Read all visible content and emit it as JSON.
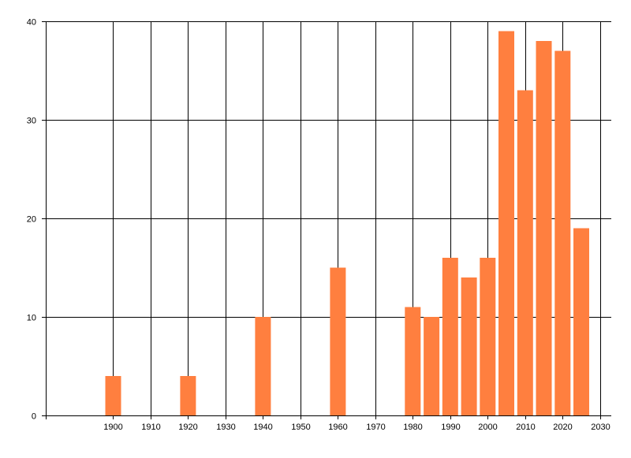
{
  "chart_data": {
    "type": "bar",
    "x": [
      1900,
      1920,
      1940,
      1960,
      1980,
      1985,
      1990,
      1995,
      2000,
      2005,
      2010,
      2015,
      2020,
      2025
    ],
    "values": [
      4,
      4,
      10,
      15,
      11,
      10,
      16,
      14,
      16,
      39,
      33,
      38,
      37,
      19
    ],
    "xlim": [
      1882,
      2033
    ],
    "ylim": [
      0,
      40
    ],
    "xticks": [
      1900,
      1910,
      1920,
      1930,
      1940,
      1950,
      1960,
      1970,
      1980,
      1990,
      2000,
      2010,
      2020,
      2030
    ],
    "yticks": [
      0,
      10,
      20,
      30,
      40
    ],
    "grid": true,
    "bar_color": "#ff7f3f",
    "title": "",
    "xlabel": "",
    "ylabel": ""
  }
}
